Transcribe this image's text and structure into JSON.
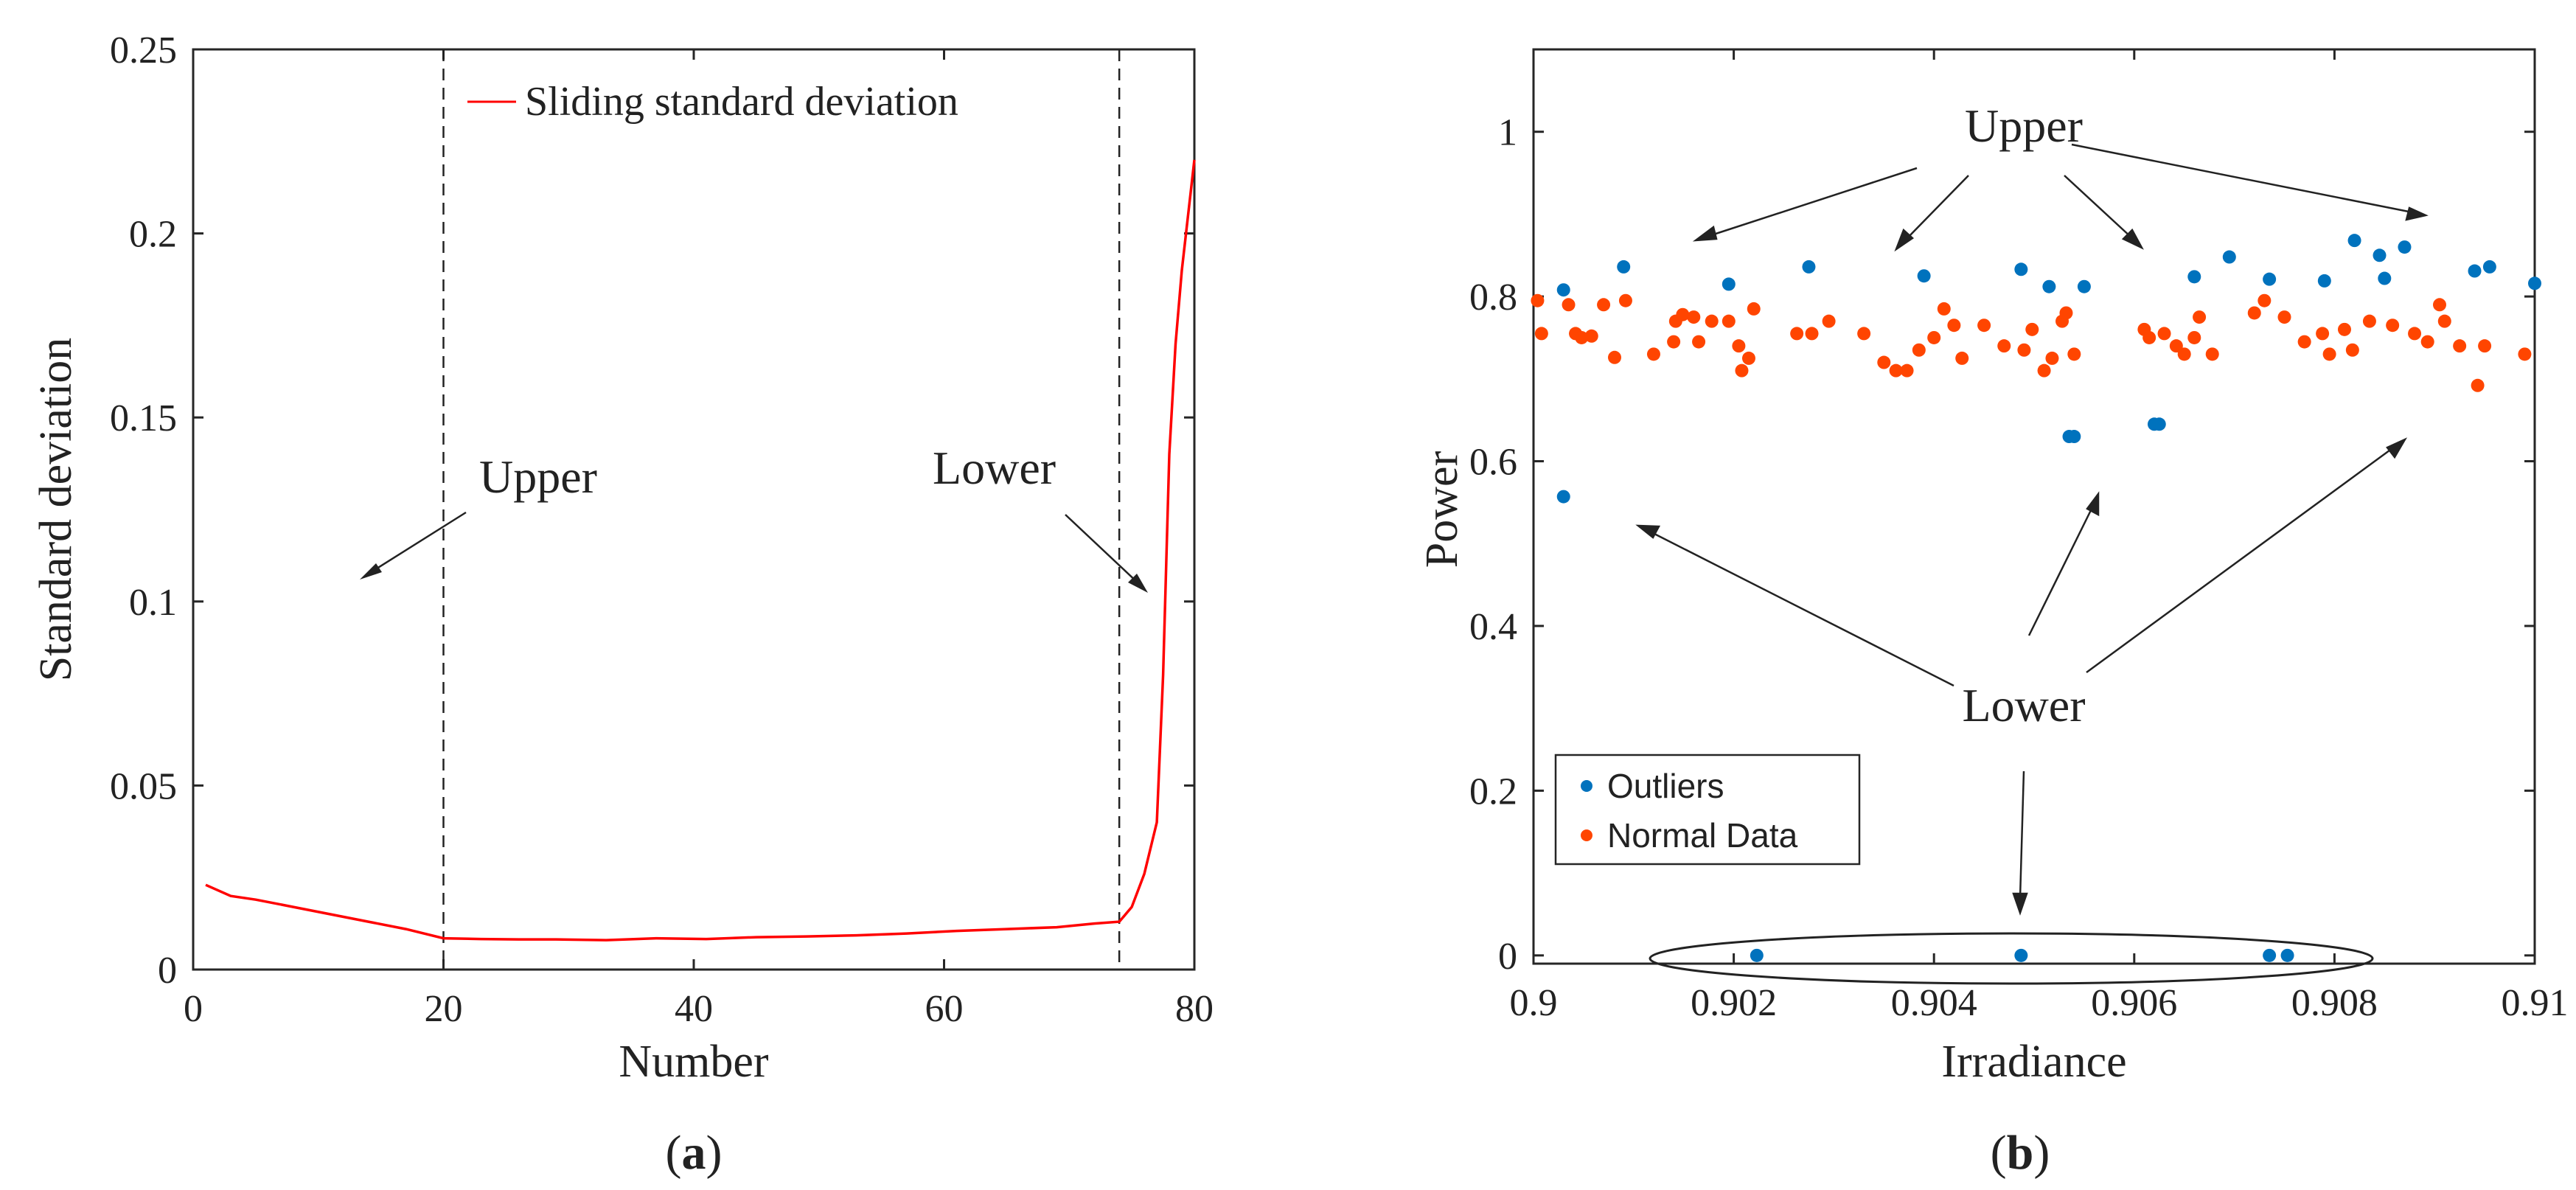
{
  "colors": {
    "line": "#ff0000",
    "outliers": "#0072bd",
    "normal": "#ff4500",
    "axis": "#262626",
    "text": "#222222"
  },
  "chart_data": [
    {
      "type": "line",
      "caption": "(a)",
      "caption_parts": {
        "open": "(",
        "letter": "a",
        "close": ")"
      },
      "xlabel": "Number",
      "ylabel": "Standard deviation",
      "xlim": [
        0,
        80
      ],
      "ylim": [
        0,
        0.25
      ],
      "xticks": [
        0,
        20,
        40,
        60,
        80
      ],
      "xtick_labels": [
        "0",
        "20",
        "40",
        "60",
        "80"
      ],
      "yticks": [
        0,
        0.05,
        0.1,
        0.15,
        0.2,
        0.25
      ],
      "ytick_labels": [
        "0",
        "0.05",
        "0.1",
        "0.15",
        "0.2",
        "0.25"
      ],
      "legend": {
        "label": "Sliding standard deviation",
        "position": "top"
      },
      "series": [
        {
          "name": "Sliding standard deviation",
          "x": [
            1,
            3,
            5,
            8,
            11,
            14,
            17,
            20,
            23,
            26,
            29,
            33,
            37,
            41,
            45,
            49,
            53,
            57,
            61,
            65,
            69,
            72,
            74,
            75,
            76,
            77,
            77.5,
            78,
            78.5,
            79,
            80
          ],
          "y": [
            0.023,
            0.02,
            0.019,
            0.017,
            0.015,
            0.013,
            0.011,
            0.0085,
            0.0083,
            0.0082,
            0.0082,
            0.008,
            0.0085,
            0.0083,
            0.0088,
            0.009,
            0.0093,
            0.0098,
            0.0105,
            0.011,
            0.0115,
            0.0125,
            0.013,
            0.017,
            0.026,
            0.04,
            0.08,
            0.14,
            0.17,
            0.19,
            0.22
          ]
        }
      ],
      "vlines": [
        20,
        74
      ],
      "annotations": [
        {
          "text": "Upper"
        },
        {
          "text": "Lower"
        }
      ]
    },
    {
      "type": "scatter",
      "caption": "(b)",
      "caption_parts": {
        "open": "(",
        "letter": "b",
        "close": ")"
      },
      "xlabel": "Irradiance",
      "ylabel": "Power",
      "xlim": [
        0.9,
        0.91
      ],
      "ylim": [
        -0.01,
        1.1
      ],
      "xticks": [
        0.9,
        0.902,
        0.904,
        0.906,
        0.908,
        0.91
      ],
      "xtick_labels": [
        "0.9",
        "0.902",
        "0.904",
        "0.906",
        "0.908",
        "0.91"
      ],
      "yticks": [
        0,
        0.2,
        0.4,
        0.6,
        0.8,
        1.0
      ],
      "ytick_labels": [
        "0",
        "0.2",
        "0.4",
        "0.6",
        "0.8",
        "1"
      ],
      "legend": {
        "entries": [
          "Outliers",
          "Normal Data"
        ],
        "position": "bottom-left"
      },
      "series": [
        {
          "name": "Outliers",
          "x": [
            0.9003,
            0.9009,
            0.90195,
            0.90275,
            0.9039,
            0.90487,
            0.90515,
            0.90535,
            0.9055,
            0.9062,
            0.9066,
            0.90695,
            0.90735,
            0.9079,
            0.9082,
            0.90845,
            0.9085,
            0.9087,
            0.9094,
            0.90955,
            0.91,
            0.9003,
            0.9054,
            0.90625,
            0.90223,
            0.90487,
            0.90735,
            0.90753
          ],
          "y": [
            0.808,
            0.836,
            0.815,
            0.836,
            0.825,
            0.833,
            0.812,
            0.63,
            0.812,
            0.645,
            0.824,
            0.848,
            0.821,
            0.819,
            0.868,
            0.85,
            0.822,
            0.86,
            0.831,
            0.836,
            0.816,
            0.557,
            0.63,
            0.645,
            0.0,
            0.0,
            0.0,
            0.0
          ]
        },
        {
          "name": "Normal Data",
          "x": [
            0.90004,
            0.90008,
            0.90035,
            0.90042,
            0.90048,
            0.90058,
            0.9007,
            0.90081,
            0.90092,
            0.9012,
            0.9014,
            0.90142,
            0.90149,
            0.9016,
            0.90165,
            0.90178,
            0.90195,
            0.90205,
            0.90208,
            0.90215,
            0.9022,
            0.90263,
            0.90278,
            0.90295,
            0.9033,
            0.9035,
            0.90362,
            0.90373,
            0.90385,
            0.904,
            0.9041,
            0.9042,
            0.90428,
            0.9045,
            0.9047,
            0.9049,
            0.90498,
            0.9051,
            0.90518,
            0.90528,
            0.90532,
            0.9054,
            0.9061,
            0.90615,
            0.9063,
            0.90642,
            0.9065,
            0.9066,
            0.90665,
            0.90678,
            0.9072,
            0.9073,
            0.9075,
            0.9077,
            0.90788,
            0.90795,
            0.9081,
            0.90818,
            0.90835,
            0.90858,
            0.9088,
            0.90893,
            0.90905,
            0.9091,
            0.90925,
            0.90943,
            0.9095,
            0.9099
          ],
          "y": [
            0.795,
            0.755,
            0.79,
            0.755,
            0.75,
            0.752,
            0.79,
            0.726,
            0.795,
            0.73,
            0.745,
            0.77,
            0.778,
            0.775,
            0.745,
            0.77,
            0.77,
            0.74,
            0.71,
            0.725,
            0.785,
            0.755,
            0.755,
            0.77,
            0.755,
            0.72,
            0.71,
            0.71,
            0.735,
            0.75,
            0.785,
            0.765,
            0.725,
            0.765,
            0.74,
            0.735,
            0.76,
            0.71,
            0.725,
            0.77,
            0.78,
            0.73,
            0.76,
            0.75,
            0.755,
            0.74,
            0.73,
            0.75,
            0.775,
            0.73,
            0.78,
            0.795,
            0.775,
            0.745,
            0.755,
            0.73,
            0.76,
            0.735,
            0.77,
            0.765,
            0.755,
            0.745,
            0.79,
            0.77,
            0.74,
            0.692,
            0.74,
            0.73
          ]
        }
      ],
      "annotations": [
        {
          "text": "Upper"
        },
        {
          "text": "Lower"
        }
      ]
    }
  ]
}
